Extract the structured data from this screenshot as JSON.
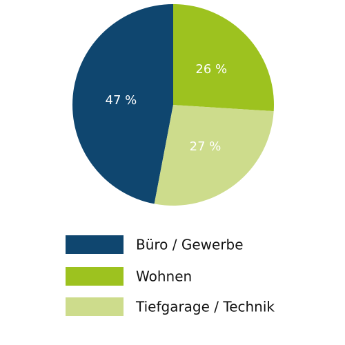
{
  "chart_data": {
    "type": "pie",
    "title": "",
    "categories": [
      "Büro / Gewerbe",
      "Wohnen",
      "Tiefgarage  / Technik"
    ],
    "values": [
      47,
      26,
      27
    ],
    "labels": [
      "47 %",
      "26 %",
      "27 %"
    ],
    "colors": [
      "#0f466f",
      "#9dc21f",
      "#cddc8c"
    ],
    "legend_position": "bottom"
  }
}
